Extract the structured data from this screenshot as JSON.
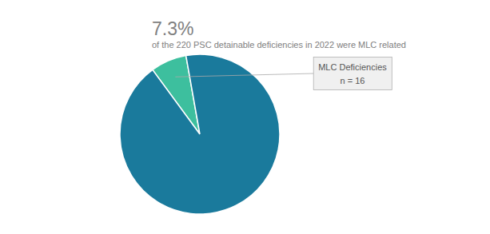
{
  "chart_data": {
    "type": "pie",
    "title": "7.3%",
    "subtitle": "of the 220 PSC detainable deficiencies in 2022 were MLC related",
    "annotations": [
      "MLC Deficiencies",
      "n = 16"
    ],
    "values": [
      7.3,
      92.7
    ],
    "colors": [
      "#3dbf9e",
      "#1a7a9c"
    ]
  }
}
